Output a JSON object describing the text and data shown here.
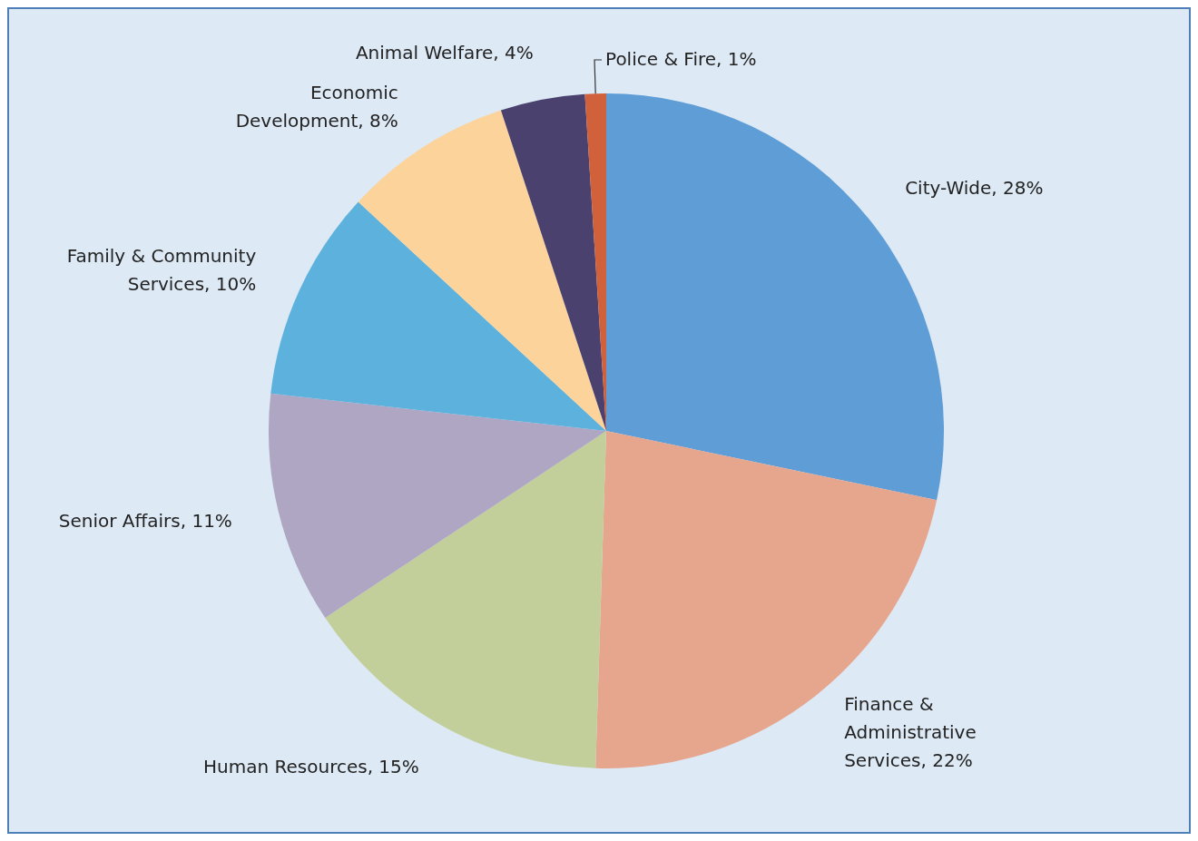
{
  "chart_data": {
    "type": "pie",
    "categories": [
      "City-Wide",
      "Finance & Administrative Services",
      "Human Resources",
      "Senior Affairs",
      "Family & Community Services",
      "Economic Development",
      "Animal Welfare",
      "Police & Fire"
    ],
    "values": [
      28,
      22,
      15,
      11,
      10,
      8,
      4,
      1
    ],
    "value_labels": [
      "28%",
      "22%",
      "15%",
      "11%",
      "10%",
      "8%",
      "4%",
      "1%"
    ],
    "colors": [
      "#5f9dd6",
      "#e6a68e",
      "#c3cf9a",
      "#aea6c2",
      "#5db2dd",
      "#fcd39a",
      "#4b416f",
      "#d0613a"
    ]
  }
}
